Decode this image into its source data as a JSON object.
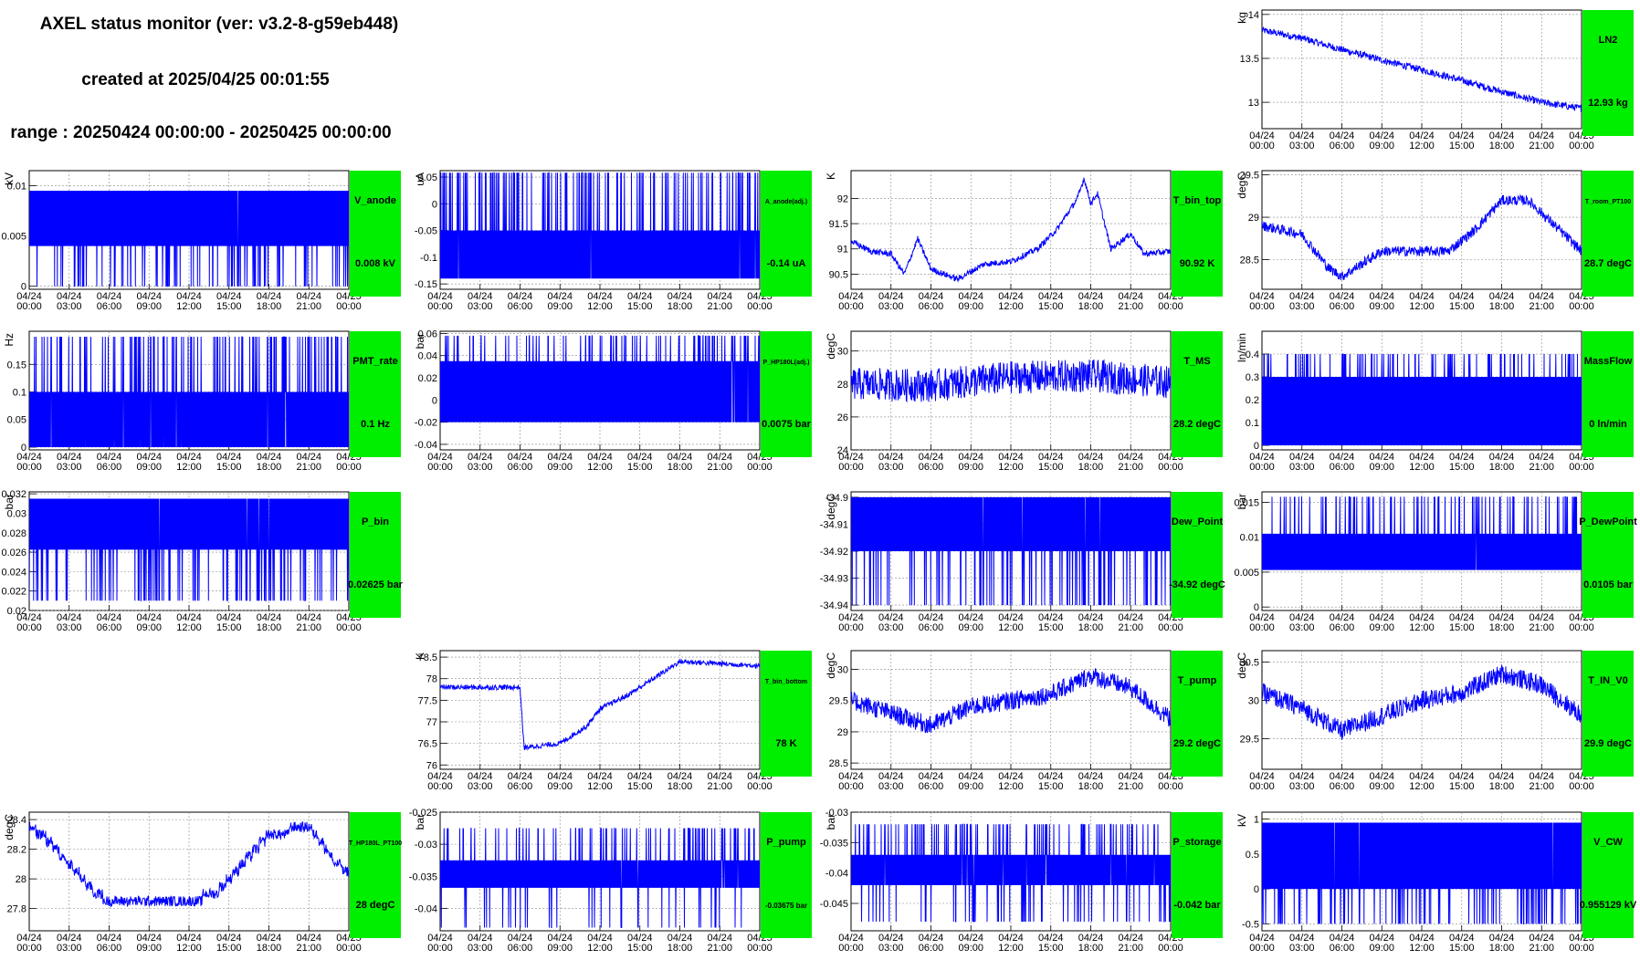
{
  "header": {
    "title": "AXEL status monitor (ver: v3.2-8-g59eb448)",
    "created": "created at 2025/04/25 00:01:55",
    "range": "range : 20250424 00:00:00 - 20250425 00:00:00"
  },
  "colors": {
    "trace": "#0000ff",
    "status_box": "#00ee00",
    "grid": "#888888"
  },
  "time_ticks": {
    "dates": [
      "04/24",
      "04/24",
      "04/24",
      "04/24",
      "04/24",
      "04/24",
      "04/24",
      "04/24",
      "04/25"
    ],
    "times": [
      "00:00",
      "03:00",
      "06:00",
      "09:00",
      "12:00",
      "15:00",
      "18:00",
      "21:00",
      "00:00"
    ]
  },
  "chart_data": [
    {
      "id": "LN2",
      "type": "line",
      "ylabel": "kg",
      "yticks": [
        "14",
        "13.5",
        "13"
      ],
      "ytick_values": [
        14,
        13.5,
        13
      ],
      "ylim": [
        12.7,
        14.05
      ],
      "status_name": "LN2",
      "status_value": "12.93 kg",
      "x": "00:00 to 24:00",
      "trend": [
        [
          0,
          13.82
        ],
        [
          3,
          13.73
        ],
        [
          6,
          13.6
        ],
        [
          9,
          13.48
        ],
        [
          12,
          13.37
        ],
        [
          15,
          13.25
        ],
        [
          18,
          13.12
        ],
        [
          21,
          13.0
        ],
        [
          24,
          12.93
        ]
      ],
      "noise": 0.08,
      "ylim_reverse": false
    },
    {
      "id": "V_anode",
      "type": "line",
      "ylabel": "kV",
      "yticks": [
        "0.01",
        "0.005",
        "0"
      ],
      "ytick_values": [
        0.01,
        0.005,
        0
      ],
      "ylim": [
        -0.0003,
        0.0115
      ],
      "status_name": "V_anode",
      "status_value": "0.008 kV",
      "levels": [
        0.0095,
        0.004,
        0
      ]
    },
    {
      "id": "A_anode",
      "type": "line",
      "ylabel": "uA",
      "yticks": [
        "0.05",
        "0",
        "-0.05",
        "-0.1",
        "-0.15"
      ],
      "ytick_values": [
        0.05,
        0,
        -0.05,
        -0.1,
        -0.15
      ],
      "ylim": [
        -0.16,
        0.062
      ],
      "status_name": "A_anode(adj.)",
      "status_value": "-0.14 uA",
      "levels": [
        -0.05,
        -0.14,
        0.058
      ]
    },
    {
      "id": "T_bin_top",
      "type": "line",
      "ylabel": "K",
      "yticks": [
        "92",
        "91.5",
        "91",
        "90.5"
      ],
      "ytick_values": [
        92,
        91.5,
        91,
        90.5
      ],
      "ylim": [
        90.2,
        92.55
      ],
      "status_name": "T_bin_top",
      "status_value": "90.92 K",
      "trend": [
        [
          0,
          91.15
        ],
        [
          1.5,
          90.95
        ],
        [
          3,
          90.9
        ],
        [
          4,
          90.5
        ],
        [
          5,
          91.2
        ],
        [
          6,
          90.6
        ],
        [
          8,
          90.4
        ],
        [
          10,
          90.7
        ],
        [
          12,
          90.75
        ],
        [
          14,
          91.0
        ],
        [
          15.5,
          91.4
        ],
        [
          17,
          92.0
        ],
        [
          17.5,
          92.4
        ],
        [
          18,
          91.9
        ],
        [
          18.5,
          92.1
        ],
        [
          19.5,
          91.0
        ],
        [
          21,
          91.3
        ],
        [
          22,
          90.9
        ],
        [
          24,
          90.95
        ]
      ],
      "noise": 0.12
    },
    {
      "id": "T_room_PT100",
      "type": "line",
      "ylabel": "degC",
      "yticks": [
        "29.5",
        "29",
        "28.5"
      ],
      "ytick_values": [
        29.5,
        29,
        28.5
      ],
      "ylim": [
        28.15,
        29.55
      ],
      "status_name": "T_room_PT100",
      "status_value": "28.7 degC",
      "trend": [
        [
          0,
          28.9
        ],
        [
          3,
          28.8
        ],
        [
          5,
          28.4
        ],
        [
          6,
          28.3
        ],
        [
          9,
          28.6
        ],
        [
          12,
          28.6
        ],
        [
          14,
          28.6
        ],
        [
          16,
          28.85
        ],
        [
          18,
          29.2
        ],
        [
          20,
          29.2
        ],
        [
          22,
          28.9
        ],
        [
          24,
          28.6
        ]
      ],
      "noise": 0.12
    },
    {
      "id": "PMT_rate",
      "type": "line",
      "ylabel": "Hz",
      "yticks": [
        "0.15",
        "0.1",
        "0.05",
        "0"
      ],
      "ytick_values": [
        0.15,
        0.1,
        0.05,
        0
      ],
      "ylim": [
        -0.005,
        0.21
      ],
      "status_name": "PMT_rate",
      "status_value": "0.1 Hz",
      "levels": [
        0.1,
        0.0,
        0.2
      ]
    },
    {
      "id": "P_HP180L",
      "type": "line",
      "ylabel": "bar",
      "yticks": [
        "0.06",
        "0.04",
        "0.02",
        "0",
        "-0.02",
        "-0.04"
      ],
      "ytick_values": [
        0.06,
        0.04,
        0.02,
        0,
        -0.02,
        -0.04
      ],
      "ylim": [
        -0.045,
        0.062
      ],
      "status_name": "P_HP180L(adj.)",
      "status_value": "0.0075 bar",
      "levels": [
        0.035,
        -0.02,
        0.058
      ]
    },
    {
      "id": "T_MS",
      "type": "line",
      "ylabel": "degC",
      "yticks": [
        "30",
        "28",
        "26",
        "24"
      ],
      "ytick_values": [
        30,
        28,
        26,
        24
      ],
      "ylim": [
        24,
        31.2
      ],
      "status_name": "T_MS",
      "status_value": "28.2 degC",
      "trend": [
        [
          0,
          28.0
        ],
        [
          6,
          27.9
        ],
        [
          12,
          28.4
        ],
        [
          18,
          28.5
        ],
        [
          24,
          28.1
        ]
      ],
      "noise": 2.0
    },
    {
      "id": "MassFlow",
      "type": "line",
      "ylabel": "ln/min",
      "yticks": [
        "0.4",
        "0.3",
        "0.2",
        "0.1",
        "0"
      ],
      "ytick_values": [
        0.4,
        0.3,
        0.2,
        0.1,
        0
      ],
      "ylim": [
        -0.02,
        0.5
      ],
      "status_name": "MassFlow",
      "status_value": "0 ln/min",
      "levels": [
        0.3,
        0,
        0.4
      ]
    },
    {
      "id": "P_bin",
      "type": "line",
      "ylabel": "bar",
      "yticks": [
        "0.032",
        "0.03",
        "0.028",
        "0.026",
        "0.024",
        "0.022",
        "0.02"
      ],
      "ytick_values": [
        0.032,
        0.03,
        0.028,
        0.026,
        0.024,
        0.022,
        0.02
      ],
      "ylim": [
        0.02,
        0.0322
      ],
      "status_name": "P_bin",
      "status_value": "0.02625 bar",
      "levels": [
        0.0315,
        0.02625,
        0.021
      ]
    },
    {
      "id": "Dew_Point",
      "type": "line",
      "ylabel": "degC",
      "yticks": [
        "-34.9",
        "-34.91",
        "-34.92",
        "-34.93",
        "-34.94"
      ],
      "ytick_values": [
        -34.9,
        -34.91,
        -34.92,
        -34.93,
        -34.94
      ],
      "ylim": [
        -34.942,
        -34.898
      ],
      "status_name": "Dew_Point",
      "status_value": "-34.92 degC",
      "levels": [
        -34.9,
        -34.92,
        -34.94
      ]
    },
    {
      "id": "P_DewPoint",
      "type": "line",
      "ylabel": "bar",
      "yticks": [
        "0.015",
        "0.01",
        "0.005",
        "0"
      ],
      "ytick_values": [
        0.015,
        0.01,
        0.005,
        0
      ],
      "ylim": [
        -0.0005,
        0.0165
      ],
      "status_name": "P_DewPoint",
      "status_value": "0.0105 bar",
      "levels": [
        0.0105,
        0.0053,
        0.0158
      ]
    },
    {
      "id": "T_bin_bottom",
      "type": "line",
      "ylabel": "K",
      "yticks": [
        "78.5",
        "78",
        "77.5",
        "77",
        "76.5",
        "76"
      ],
      "ytick_values": [
        78.5,
        78,
        77.5,
        77,
        76.5,
        76
      ],
      "ylim": [
        75.9,
        78.65
      ],
      "status_name": "T_bin_bottom",
      "status_value": "78 K",
      "trend": [
        [
          0,
          77.8
        ],
        [
          6,
          77.8
        ],
        [
          6.3,
          76.4
        ],
        [
          9,
          76.5
        ],
        [
          11,
          76.9
        ],
        [
          12,
          77.3
        ],
        [
          14,
          77.6
        ],
        [
          15.5,
          77.9
        ],
        [
          17,
          78.2
        ],
        [
          18,
          78.4
        ],
        [
          24,
          78.3
        ]
      ],
      "noise": 0.12
    },
    {
      "id": "T_pump",
      "type": "line",
      "ylabel": "degC",
      "yticks": [
        "30",
        "29.5",
        "29",
        "28.5"
      ],
      "ytick_values": [
        30,
        29.5,
        29,
        28.5
      ],
      "ylim": [
        28.4,
        30.3
      ],
      "status_name": "T_pump",
      "status_value": "29.2 degC",
      "trend": [
        [
          0,
          29.5
        ],
        [
          3,
          29.3
        ],
        [
          6,
          29.1
        ],
        [
          9,
          29.4
        ],
        [
          12,
          29.5
        ],
        [
          15,
          29.6
        ],
        [
          18,
          29.9
        ],
        [
          21,
          29.7
        ],
        [
          24,
          29.2
        ]
      ],
      "noise": 0.3
    },
    {
      "id": "T_IN_V0",
      "type": "line",
      "ylabel": "degC",
      "yticks": [
        "30.5",
        "30",
        "29.5"
      ],
      "ytick_values": [
        30.5,
        30,
        29.5
      ],
      "ylim": [
        29.1,
        30.65
      ],
      "status_name": "T_IN_V0",
      "status_value": "29.9 degC",
      "trend": [
        [
          0,
          30.1
        ],
        [
          3,
          29.9
        ],
        [
          6,
          29.6
        ],
        [
          9,
          29.8
        ],
        [
          12,
          30.0
        ],
        [
          15,
          30.1
        ],
        [
          18,
          30.35
        ],
        [
          21,
          30.2
        ],
        [
          24,
          29.8
        ]
      ],
      "noise": 0.25
    },
    {
      "id": "T_HP180L_PT100",
      "type": "line",
      "ylabel": "degC",
      "yticks": [
        "28.4",
        "28.2",
        "28",
        "27.8"
      ],
      "ytick_values": [
        28.4,
        28.2,
        28,
        27.8
      ],
      "ylim": [
        27.65,
        28.45
      ],
      "status_name": "T_HP180L_PT100",
      "status_value": "28 degC",
      "trend": [
        [
          0,
          28.35
        ],
        [
          1,
          28.3
        ],
        [
          2,
          28.2
        ],
        [
          3,
          28.1
        ],
        [
          4,
          28.0
        ],
        [
          5,
          27.9
        ],
        [
          6,
          27.85
        ],
        [
          12,
          27.85
        ],
        [
          14,
          27.9
        ],
        [
          15,
          28.0
        ],
        [
          16,
          28.1
        ],
        [
          17,
          28.2
        ],
        [
          18,
          28.3
        ],
        [
          21,
          28.35
        ],
        [
          22,
          28.25
        ],
        [
          23,
          28.1
        ],
        [
          24,
          28.05
        ]
      ],
      "noise": 0.07,
      "step": true
    },
    {
      "id": "P_pump",
      "type": "line",
      "ylabel": "bar",
      "yticks": [
        "-0.025",
        "-0.03",
        "-0.035",
        "-0.04"
      ],
      "ytick_values": [
        -0.025,
        -0.03,
        -0.035,
        -0.04
      ],
      "ylim": [
        -0.0435,
        -0.025
      ],
      "status_name": "P_pump",
      "status_value": "-0.03675 bar",
      "levels": [
        -0.0325,
        -0.0368,
        -0.0275,
        -0.043
      ]
    },
    {
      "id": "P_storage",
      "type": "line",
      "ylabel": "bar",
      "yticks": [
        "-0.03",
        "-0.035",
        "-0.04",
        "-0.045"
      ],
      "ytick_values": [
        -0.03,
        -0.035,
        -0.04,
        -0.045
      ],
      "ylim": [
        -0.0495,
        -0.03
      ],
      "status_name": "P_storage",
      "status_value": "-0.042 bar",
      "levels": [
        -0.037,
        -0.042,
        -0.032,
        -0.048
      ]
    },
    {
      "id": "V_CW",
      "type": "line",
      "ylabel": "kV",
      "yticks": [
        "1",
        "0.5",
        "0",
        "-0.5"
      ],
      "ytick_values": [
        1,
        0.5,
        0,
        -0.5
      ],
      "ylim": [
        -0.6,
        1.1
      ],
      "status_name": "V_CW",
      "status_value": "0.955129 kV",
      "levels": [
        0.95,
        0.0,
        -0.5
      ]
    }
  ]
}
